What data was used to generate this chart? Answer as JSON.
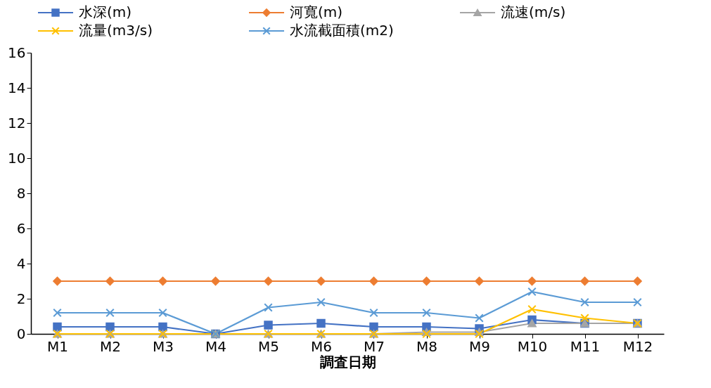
{
  "chart_data": {
    "type": "line",
    "xlabel": "調査日期",
    "categories": [
      "M1",
      "M2",
      "M3",
      "M4",
      "M5",
      "M6",
      "M7",
      "M8",
      "M9",
      "M10",
      "M11",
      "M12"
    ],
    "series": [
      {
        "name": "水深(m)",
        "color": "#4472c4",
        "marker": "square",
        "values": [
          0.4,
          0.4,
          0.4,
          0,
          0.5,
          0.6,
          0.4,
          0.4,
          0.3,
          0.8,
          0.6,
          0.6
        ]
      },
      {
        "name": "河寬(m)",
        "color": "#ed7d31",
        "marker": "diamond",
        "values": [
          3,
          3,
          3,
          3,
          3,
          3,
          3,
          3,
          3,
          3,
          3,
          3
        ]
      },
      {
        "name": "流速(m/s)",
        "color": "#a5a5a5",
        "marker": "triangle",
        "values": [
          0,
          0,
          0,
          0,
          0,
          0,
          0,
          0.1,
          0.1,
          0.6,
          0.6,
          0.6
        ]
      },
      {
        "name": "流量(m3/s)",
        "color": "#ffc000",
        "marker": "cross",
        "values": [
          0,
          0,
          0,
          0,
          0,
          0,
          0,
          0,
          0,
          1.4,
          0.9,
          0.6
        ]
      },
      {
        "name": "水流截面積(m2)",
        "color": "#5b9bd5",
        "marker": "cross",
        "values": [
          1.2,
          1.2,
          1.2,
          0,
          1.5,
          1.8,
          1.2,
          1.2,
          0.9,
          2.4,
          1.8,
          1.8
        ]
      }
    ],
    "ylim": [
      0,
      16
    ],
    "yticks": [
      0,
      2,
      4,
      6,
      8,
      10,
      12,
      14,
      16
    ],
    "grid": false,
    "legend": "top",
    "line_style": "solid"
  }
}
